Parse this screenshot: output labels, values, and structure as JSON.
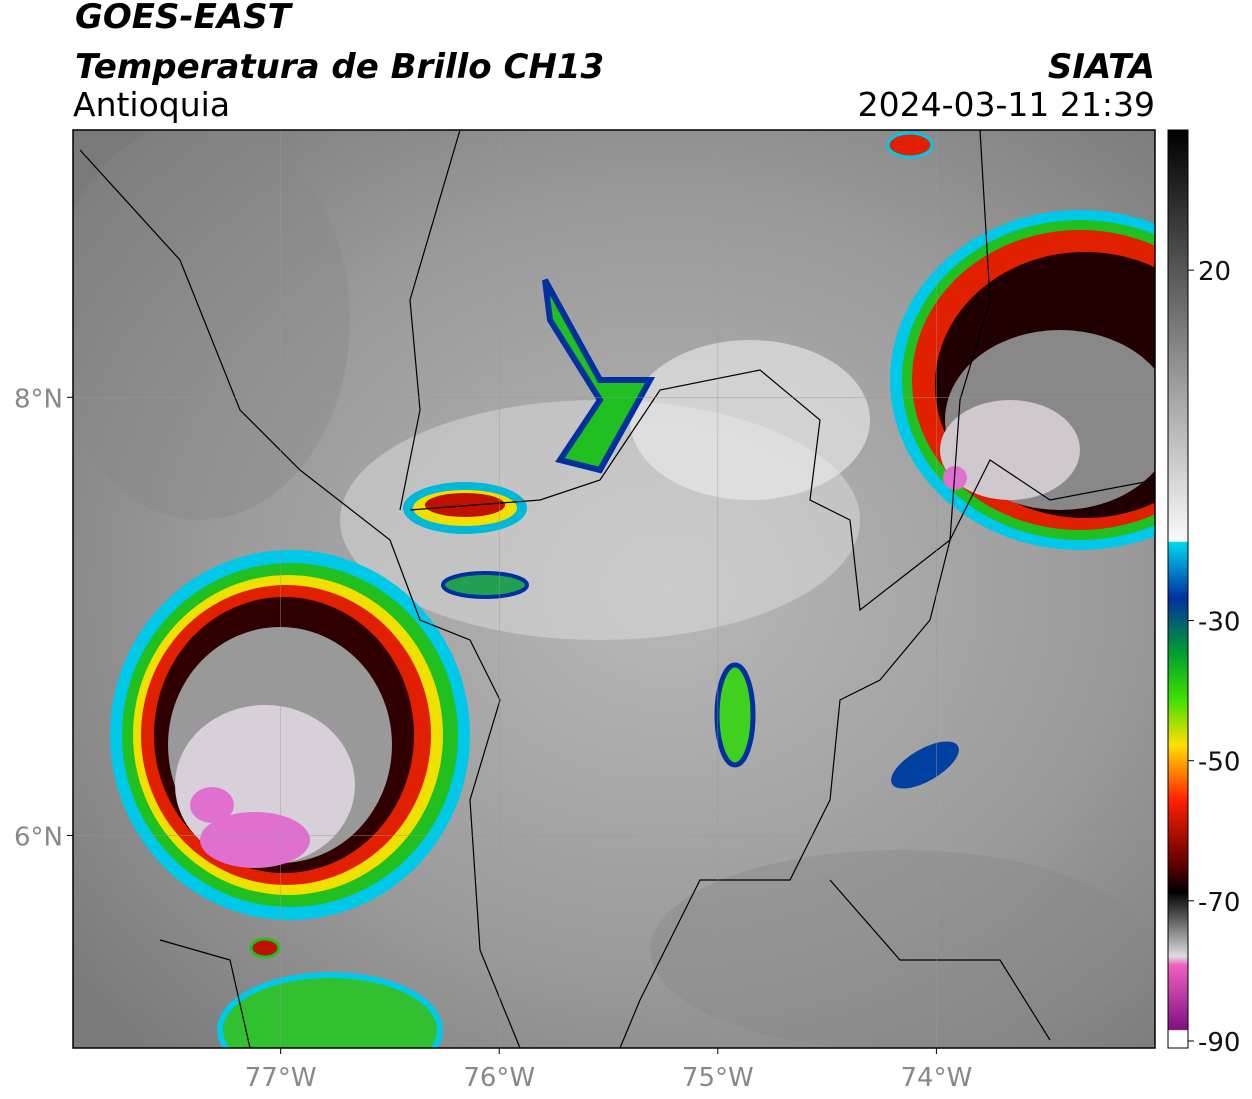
{
  "header": {
    "title": "GOES-EAST",
    "subtitle": "Temperatura de Brillo CH13",
    "region": "Antioquia",
    "source": "SIATA",
    "datetime": "2024-03-11 21:39"
  },
  "map": {
    "lonlim": [
      -77.95,
      -73.0
    ],
    "latlim": [
      5.03,
      9.22
    ],
    "lon_ticks": [
      {
        "value": -77,
        "label": "77°W"
      },
      {
        "value": -76,
        "label": "76°W"
      },
      {
        "value": -75,
        "label": "75°W"
      },
      {
        "value": -74,
        "label": "74°W"
      }
    ],
    "lat_ticks": [
      {
        "value": 8,
        "label": "8°N"
      },
      {
        "value": 6,
        "label": "6°N"
      }
    ],
    "grid": true
  },
  "colorbar": {
    "lim": [
      -91,
      40
    ],
    "ticks": [
      20,
      -30,
      -50,
      -70,
      -90
    ]
  }
}
